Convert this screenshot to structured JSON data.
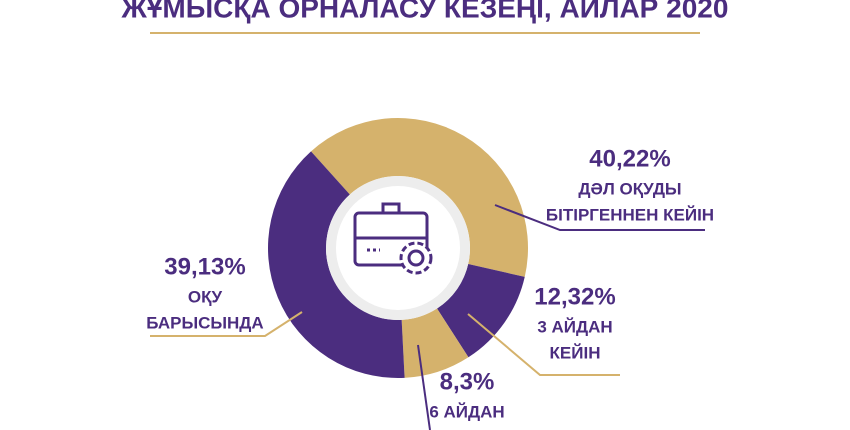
{
  "chart_data": {
    "type": "pie",
    "title": "ЖҰМЫСҚА ОРНАЛАСУ КЕЗЕҢІ, АЙЛАР 2020",
    "categories": [
      [
        "ДӘЛ ОҚУДЫ",
        "БІТІРГЕННЕН КЕЙІН"
      ],
      [
        "3 АЙДАН",
        "КЕЙІН"
      ],
      [
        "6 АЙДАН"
      ],
      [
        "ОҚУ",
        "БАРЫСЫНДА"
      ]
    ],
    "values": [
      40.22,
      12.32,
      8.3,
      39.13
    ],
    "value_labels": [
      "40,22%",
      "12,32%",
      "8,3%",
      "39,13%"
    ],
    "colors": [
      "#d5b26c",
      "#4b2d7f",
      "#d5b26c",
      "#4b2d7f"
    ]
  }
}
